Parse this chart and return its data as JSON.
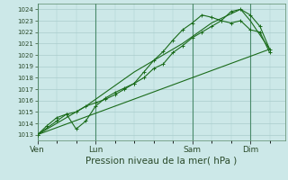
{
  "bg_color": "#cce8e8",
  "grid_color": "#aacccc",
  "line_color": "#1a6b1a",
  "xlabel": "Pression niveau de la mer( hPa )",
  "xlabel_fontsize": 7.5,
  "ylim": [
    1012.5,
    1024.5
  ],
  "yticks": [
    1013,
    1014,
    1015,
    1016,
    1017,
    1018,
    1019,
    1020,
    1021,
    1022,
    1023,
    1024
  ],
  "ytick_fontsize": 5.0,
  "xtick_labels": [
    "Ven",
    "Lun",
    "Sam",
    "Dim"
  ],
  "xtick_positions": [
    0,
    3,
    8,
    11
  ],
  "xtick_fontsize": 6.5,
  "xlim": [
    0,
    12.8
  ],
  "series1": [
    [
      0,
      1013.0
    ],
    [
      0.5,
      1013.8
    ],
    [
      1,
      1014.5
    ],
    [
      1.5,
      1014.8
    ],
    [
      2,
      1015.0
    ],
    [
      2.5,
      1015.5
    ],
    [
      3,
      1015.8
    ],
    [
      3.5,
      1016.1
    ],
    [
      4,
      1016.5
    ],
    [
      4.5,
      1017.0
    ],
    [
      5,
      1017.5
    ],
    [
      5.5,
      1018.0
    ],
    [
      6,
      1018.8
    ],
    [
      6.5,
      1019.2
    ],
    [
      7,
      1020.2
    ],
    [
      7.5,
      1020.8
    ],
    [
      8,
      1021.5
    ],
    [
      8.5,
      1022.0
    ],
    [
      9,
      1022.5
    ],
    [
      9.5,
      1023.0
    ],
    [
      10,
      1023.8
    ],
    [
      10.5,
      1024.0
    ],
    [
      11,
      1023.5
    ],
    [
      11.5,
      1022.5
    ],
    [
      12,
      1020.5
    ]
  ],
  "series2": [
    [
      0,
      1013.0
    ],
    [
      1,
      1014.2
    ],
    [
      1.5,
      1014.8
    ],
    [
      2,
      1013.5
    ],
    [
      2.5,
      1014.2
    ],
    [
      3,
      1015.5
    ],
    [
      3.5,
      1016.2
    ],
    [
      4,
      1016.7
    ],
    [
      4.5,
      1017.1
    ],
    [
      5,
      1017.5
    ],
    [
      5.5,
      1018.5
    ],
    [
      6,
      1019.5
    ],
    [
      6.5,
      1020.3
    ],
    [
      7,
      1021.3
    ],
    [
      7.5,
      1022.2
    ],
    [
      8,
      1022.8
    ],
    [
      8.5,
      1023.5
    ],
    [
      9,
      1023.3
    ],
    [
      9.5,
      1023.0
    ],
    [
      10,
      1022.8
    ],
    [
      10.5,
      1023.0
    ],
    [
      11,
      1022.2
    ],
    [
      11.5,
      1022.0
    ],
    [
      12,
      1020.2
    ]
  ],
  "series3": [
    [
      0,
      1013.0
    ],
    [
      2.5,
      1015.5
    ],
    [
      5,
      1018.5
    ],
    [
      7.5,
      1021.0
    ],
    [
      9,
      1022.8
    ],
    [
      10.5,
      1024.0
    ],
    [
      11,
      1023.0
    ],
    [
      12,
      1020.5
    ]
  ],
  "series4_straight": [
    [
      0,
      1013.0
    ],
    [
      12,
      1020.5
    ]
  ]
}
